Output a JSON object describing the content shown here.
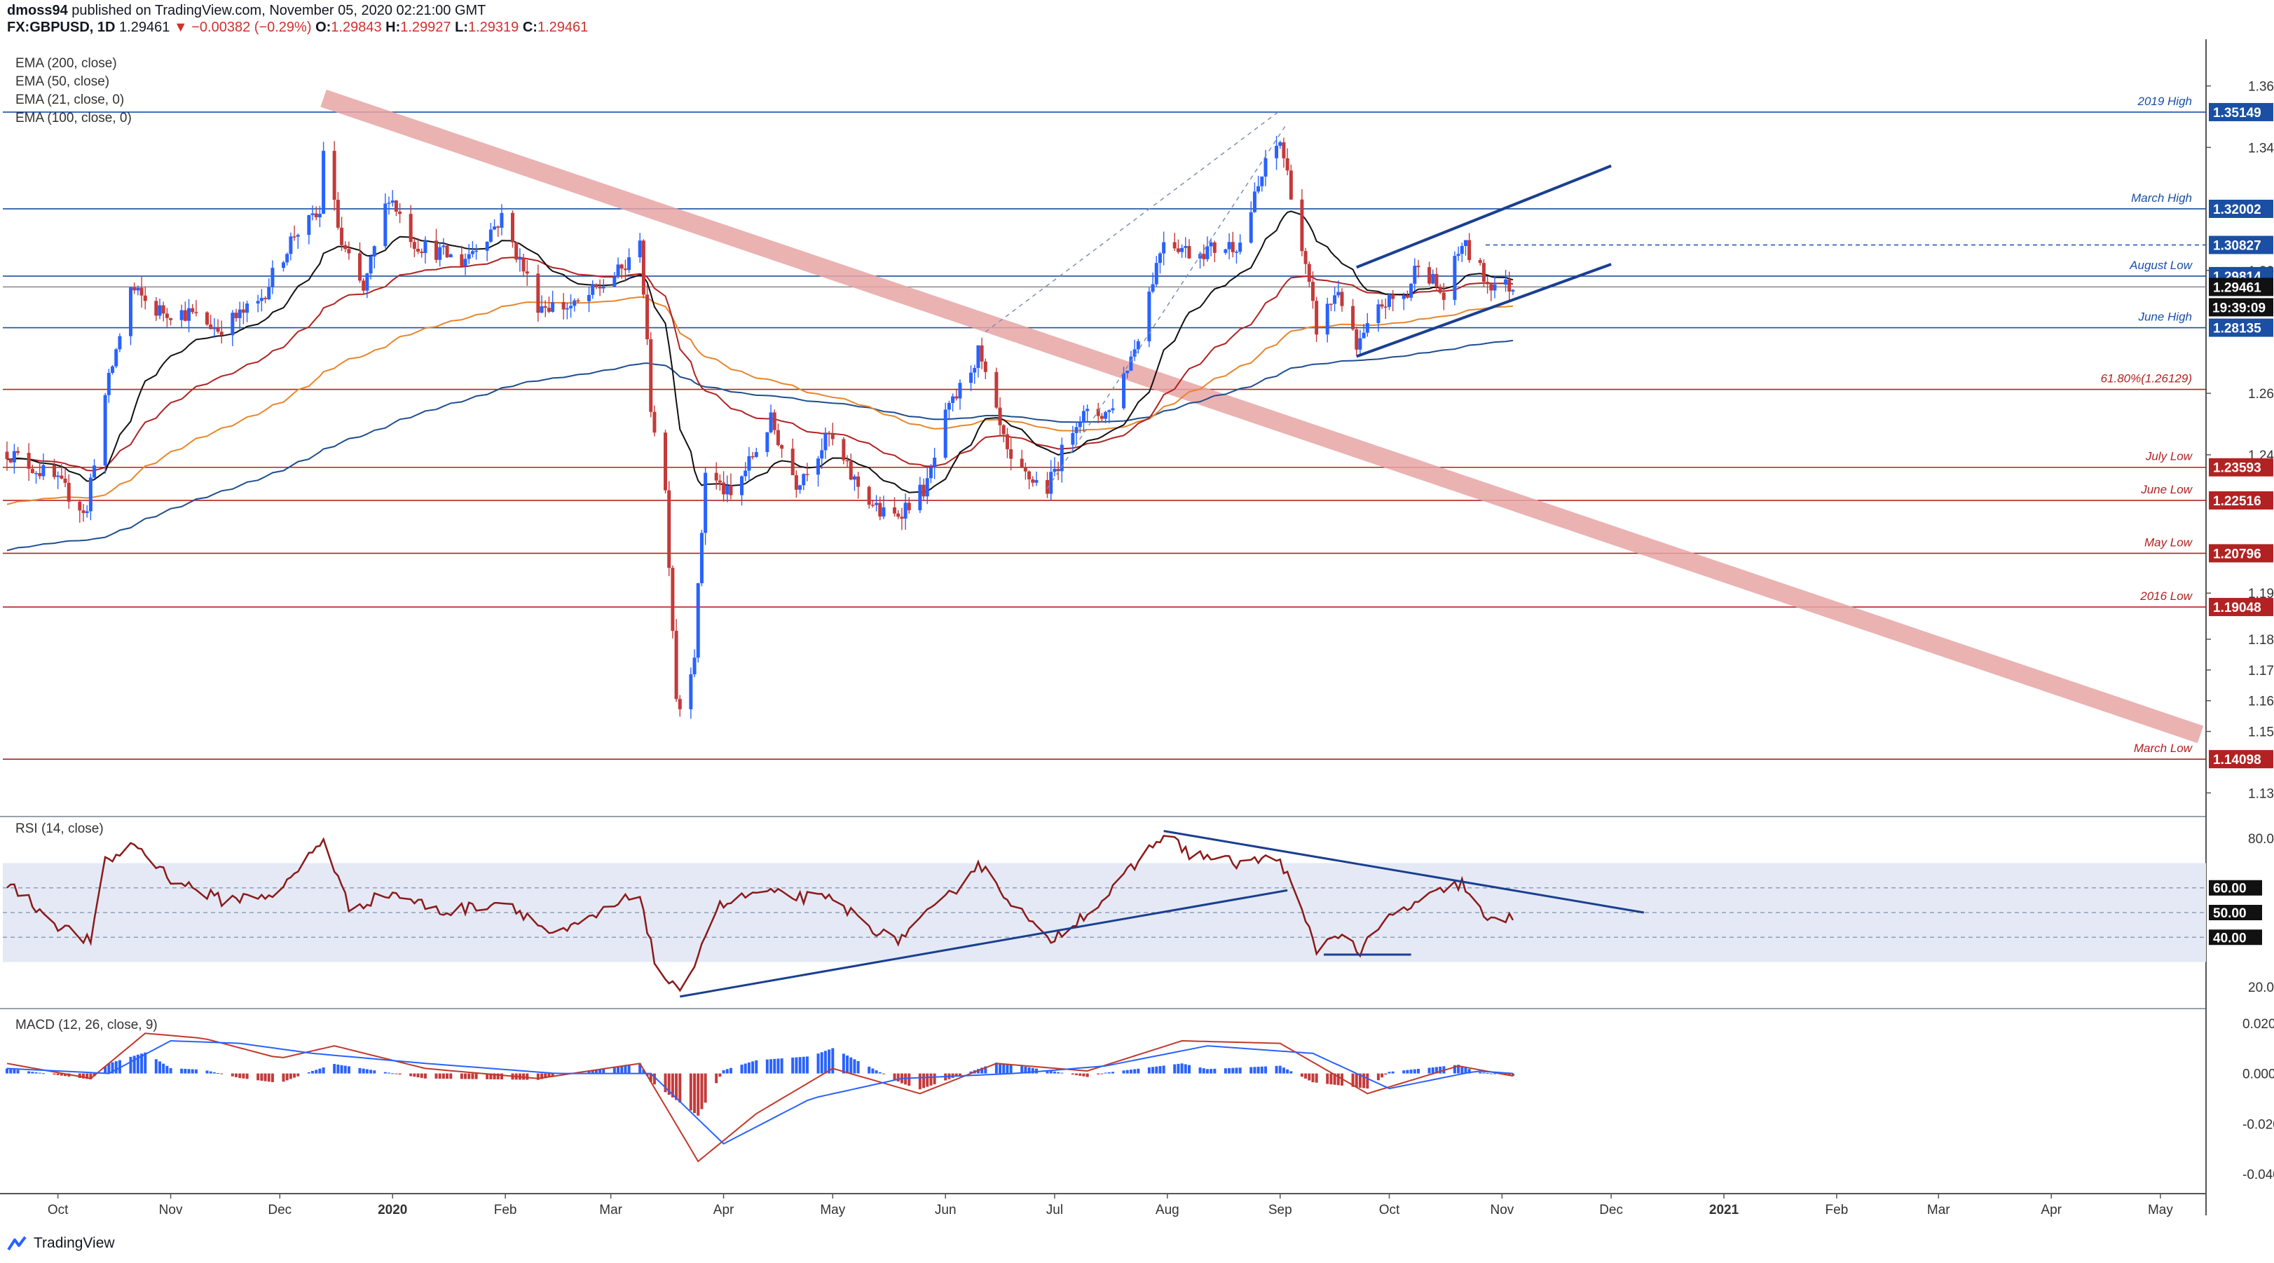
{
  "header": {
    "author": "dmoss94",
    "published_text": "published on TradingView.com, November 05, 2020 02:21:00 GMT",
    "symbol": "FX:GBPUSD, 1D",
    "last": "1.29461",
    "change": "−0.00382 (−0.29%)",
    "o_label": "O:",
    "o": "1.29843",
    "h_label": "H:",
    "h": "1.29927",
    "l_label": "L:",
    "l": "1.29319",
    "c_label": "C:",
    "c": "1.29461"
  },
  "footer": {
    "brand": "TradingView"
  },
  "colors": {
    "up": "#2962ff",
    "down": "#c43a3a",
    "ema200": "#1f4e8f",
    "ema50": "#b22222",
    "ema21": "#111111",
    "ema100": "#e8862a",
    "trend_band": "#e7a5a5",
    "channel": "#1a3f91",
    "rsi_band": "#e4e9f5"
  },
  "chart_data": [
    {
      "type": "candlestick",
      "panel": "price",
      "legend": [
        "EMA (200, close)",
        "EMA (50, close)",
        "EMA (21, close, 0)",
        "EMA (100, close, 0)"
      ],
      "x_axis_labels": [
        "Oct",
        "Nov",
        "Dec",
        "2020",
        "Feb",
        "Mar",
        "Apr",
        "May",
        "Jun",
        "Jul",
        "Aug",
        "Sep",
        "Oct",
        "Nov",
        "Dec",
        "2021",
        "Feb",
        "Mar",
        "Apr",
        "May"
      ],
      "x_range": [
        "2019-09-17",
        "2021-05-12"
      ],
      "y_range": [
        1.123,
        1.372
      ],
      "y_ticks": [
        "1.36000",
        "1.34000",
        "1.30000",
        "1.26000",
        "1.24000",
        "1.19500",
        "1.18000",
        "1.17000",
        "1.16000",
        "1.15000",
        "1.13000"
      ],
      "price_anchors": [
        [
          "2019-09-17",
          1.241
        ],
        [
          "2019-09-30",
          1.232
        ],
        [
          "2019-10-09",
          1.221
        ],
        [
          "2019-10-10",
          1.232
        ],
        [
          "2019-10-14",
          1.259
        ],
        [
          "2019-10-21",
          1.294
        ],
        [
          "2019-10-28",
          1.287
        ],
        [
          "2019-11-06",
          1.286
        ],
        [
          "2019-11-14",
          1.281
        ],
        [
          "2019-11-25",
          1.289
        ],
        [
          "2019-12-05",
          1.312
        ],
        [
          "2019-12-12",
          1.318
        ],
        [
          "2019-12-13",
          1.34
        ],
        [
          "2019-12-18",
          1.308
        ],
        [
          "2019-12-24",
          1.293
        ],
        [
          "2019-12-31",
          1.325
        ],
        [
          "2020-01-07",
          1.309
        ],
        [
          "2020-01-20",
          1.303
        ],
        [
          "2020-01-31",
          1.317
        ],
        [
          "2020-02-10",
          1.289
        ],
        [
          "2020-02-20",
          1.288
        ],
        [
          "2020-03-06",
          1.302
        ],
        [
          "2020-03-09",
          1.312
        ],
        [
          "2020-03-12",
          1.256
        ],
        [
          "2020-03-16",
          1.228
        ],
        [
          "2020-03-19",
          1.162
        ],
        [
          "2020-03-20",
          1.158
        ],
        [
          "2020-03-24",
          1.176
        ],
        [
          "2020-03-27",
          1.235
        ],
        [
          "2020-04-03",
          1.226
        ],
        [
          "2020-04-14",
          1.251
        ],
        [
          "2020-04-21",
          1.231
        ],
        [
          "2020-04-30",
          1.246
        ],
        [
          "2020-05-06",
          1.233
        ],
        [
          "2020-05-14",
          1.221
        ],
        [
          "2020-05-18",
          1.22
        ],
        [
          "2020-05-27",
          1.23
        ],
        [
          "2020-06-01",
          1.252
        ],
        [
          "2020-06-10",
          1.273
        ],
        [
          "2020-06-19",
          1.236
        ],
        [
          "2020-06-29",
          1.229
        ],
        [
          "2020-07-07",
          1.252
        ],
        [
          "2020-07-16",
          1.254
        ],
        [
          "2020-07-23",
          1.275
        ],
        [
          "2020-07-31",
          1.311
        ],
        [
          "2020-08-07",
          1.306
        ],
        [
          "2020-08-14",
          1.307
        ],
        [
          "2020-08-21",
          1.309
        ],
        [
          "2020-08-28",
          1.334
        ],
        [
          "2020-09-01",
          1.342
        ],
        [
          "2020-09-04",
          1.326
        ],
        [
          "2020-09-11",
          1.281
        ],
        [
          "2020-09-17",
          1.294
        ],
        [
          "2020-09-22",
          1.274
        ],
        [
          "2020-09-29",
          1.289
        ],
        [
          "2020-10-06",
          1.292
        ],
        [
          "2020-10-09",
          1.304
        ],
        [
          "2020-10-16",
          1.291
        ],
        [
          "2020-10-21",
          1.309
        ],
        [
          "2020-10-28",
          1.296
        ],
        [
          "2020-11-04",
          1.2946
        ]
      ],
      "current_price": 1.29461,
      "countdown": "19:39:09",
      "levels": [
        {
          "label": "2019 High",
          "price": 1.35149,
          "badge": "1.35149",
          "color": "#1a4fa3"
        },
        {
          "label": "March High",
          "price": 1.32002,
          "badge": "1.32002",
          "color": "#1a4fa3"
        },
        {
          "label": "",
          "price": 1.30827,
          "badge": "1.30827",
          "color": "#1a4fa3"
        },
        {
          "label": "August Low",
          "price": 1.29814,
          "badge": "1.29814",
          "color": "#1a4fa3"
        },
        {
          "label": "June High",
          "price": 1.28135,
          "badge": "1.28135",
          "color": "#1a4fa3"
        },
        {
          "label": "61.80%(1.26129)",
          "price": 1.26129,
          "badge": "",
          "color": "#b22222"
        },
        {
          "label": "July Low",
          "price": 1.23593,
          "badge": "1.23593",
          "color": "#b22222"
        },
        {
          "label": "June Low",
          "price": 1.22516,
          "badge": "1.22516",
          "color": "#b22222"
        },
        {
          "label": "May Low",
          "price": 1.20796,
          "badge": "1.20796",
          "color": "#b22222"
        },
        {
          "label": "2016 Low",
          "price": 1.19048,
          "badge": "1.19048",
          "color": "#b22222"
        },
        {
          "label": "March Low",
          "price": 1.14098,
          "badge": "1.14098",
          "color": "#b22222"
        }
      ],
      "trendline": {
        "start": [
          "2019-12-13",
          1.356
        ],
        "end": [
          "2021-05-12",
          1.149
        ]
      },
      "rising_wedge": {
        "upper": [
          [
            "2020-09-22",
            1.301
          ],
          [
            "2020-12-01",
            1.334
          ]
        ],
        "lower": [
          [
            "2020-09-22",
            1.272
          ],
          [
            "2020-12-01",
            1.302
          ]
        ]
      },
      "uptrend_channel": {
        "lower": [
          [
            "2020-06-29",
            1.229
          ],
          [
            "2020-09-03",
            1.348
          ]
        ],
        "upper": [
          [
            "2020-06-12",
            1.28
          ],
          [
            "2020-09-01",
            1.352
          ]
        ]
      }
    },
    {
      "type": "line",
      "panel": "rsi",
      "title": "RSI (14, close)",
      "y_range": [
        12,
        88
      ],
      "y_ticks": [
        "80.00",
        "60.00",
        "50.00",
        "40.00",
        "20.00"
      ],
      "band": [
        30,
        70
      ],
      "rsi_anchors": [
        [
          "2019-09-17",
          62
        ],
        [
          "2019-10-01",
          45
        ],
        [
          "2019-10-10",
          38
        ],
        [
          "2019-10-14",
          70
        ],
        [
          "2019-10-22",
          78
        ],
        [
          "2019-11-01",
          64
        ],
        [
          "2019-11-15",
          55
        ],
        [
          "2019-12-01",
          58
        ],
        [
          "2019-12-13",
          80
        ],
        [
          "2019-12-20",
          52
        ],
        [
          "2020-01-01",
          58
        ],
        [
          "2020-01-15",
          50
        ],
        [
          "2020-02-01",
          55
        ],
        [
          "2020-02-15",
          40
        ],
        [
          "2020-03-09",
          58
        ],
        [
          "2020-03-13",
          30
        ],
        [
          "2020-03-20",
          16
        ],
        [
          "2020-03-30",
          52
        ],
        [
          "2020-04-10",
          58
        ],
        [
          "2020-05-01",
          55
        ],
        [
          "2020-05-18",
          38
        ],
        [
          "2020-06-01",
          55
        ],
        [
          "2020-06-10",
          70
        ],
        [
          "2020-06-29",
          38
        ],
        [
          "2020-07-15",
          56
        ],
        [
          "2020-07-31",
          82
        ],
        [
          "2020-08-07",
          74
        ],
        [
          "2020-08-20",
          70
        ],
        [
          "2020-09-01",
          72
        ],
        [
          "2020-09-11",
          35
        ],
        [
          "2020-09-17",
          42
        ],
        [
          "2020-09-23",
          34
        ],
        [
          "2020-10-01",
          48
        ],
        [
          "2020-10-10",
          55
        ],
        [
          "2020-10-21",
          62
        ],
        [
          "2020-10-28",
          46
        ],
        [
          "2020-11-04",
          48
        ]
      ],
      "trend_lines": [
        {
          "from": [
            "2020-03-20",
            16
          ],
          "to": [
            "2020-09-03",
            59
          ]
        },
        {
          "from": [
            "2020-07-31",
            83
          ],
          "to": [
            "2020-12-10",
            50
          ]
        },
        {
          "from": [
            "2020-09-13",
            33
          ],
          "to": [
            "2020-10-07",
            33
          ]
        }
      ]
    },
    {
      "type": "histogram",
      "panel": "macd",
      "title": "MACD (12, 26, close, 9)",
      "y_range": [
        -0.047,
        0.025
      ],
      "y_ticks": [
        "0.02000",
        "0.00000",
        "-0.02000",
        "-0.04000"
      ],
      "macd_anchors": [
        [
          "2019-09-17",
          0.004
        ],
        [
          "2019-10-10",
          -0.002
        ],
        [
          "2019-10-25",
          0.016
        ],
        [
          "2019-11-10",
          0.014
        ],
        [
          "2019-12-01",
          0.006
        ],
        [
          "2019-12-16",
          0.011
        ],
        [
          "2020-01-10",
          0.002
        ],
        [
          "2020-02-10",
          -0.002
        ],
        [
          "2020-03-09",
          0.004
        ],
        [
          "2020-03-25",
          -0.035
        ],
        [
          "2020-04-10",
          -0.016
        ],
        [
          "2020-05-01",
          0.002
        ],
        [
          "2020-05-25",
          -0.008
        ],
        [
          "2020-06-15",
          0.004
        ],
        [
          "2020-07-10",
          0.001
        ],
        [
          "2020-08-05",
          0.013
        ],
        [
          "2020-09-01",
          0.012
        ],
        [
          "2020-09-25",
          -0.008
        ],
        [
          "2020-10-20",
          0.003
        ],
        [
          "2020-11-04",
          -0.001
        ]
      ],
      "signal_anchors": [
        [
          "2019-09-17",
          0.002
        ],
        [
          "2019-10-15",
          0.0
        ],
        [
          "2019-11-01",
          0.013
        ],
        [
          "2019-11-20",
          0.012
        ],
        [
          "2019-12-10",
          0.008
        ],
        [
          "2020-01-10",
          0.004
        ],
        [
          "2020-02-15",
          0.0
        ],
        [
          "2020-03-12",
          0.0
        ],
        [
          "2020-04-01",
          -0.028
        ],
        [
          "2020-04-25",
          -0.01
        ],
        [
          "2020-05-20",
          -0.002
        ],
        [
          "2020-06-20",
          0.0
        ],
        [
          "2020-07-15",
          0.003
        ],
        [
          "2020-08-12",
          0.011
        ],
        [
          "2020-09-10",
          0.008
        ],
        [
          "2020-10-01",
          -0.006
        ],
        [
          "2020-10-25",
          0.001
        ],
        [
          "2020-11-04",
          0.0
        ]
      ]
    }
  ]
}
